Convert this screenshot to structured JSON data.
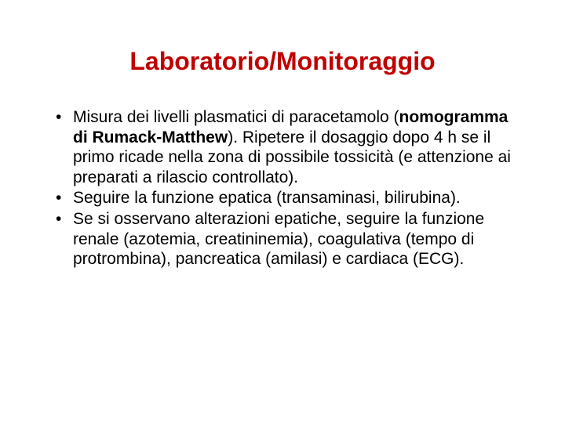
{
  "title_text": "Laboratorio/Monitoraggio",
  "title_color": "#c00000",
  "body_color": "#000000",
  "background_color": "#ffffff",
  "title_fontsize": 32,
  "body_fontsize": 21,
  "bullets": [
    {
      "pre": "Misura dei livelli plasmatici di paracetamolo (",
      "bold": "nomogramma di Rumack-Matthew",
      "post": "). Ripetere il dosaggio dopo 4 h se il primo ricade nella zona di possibile tossicità (e attenzione ai preparati a rilascio controllato)."
    },
    {
      "pre": "Seguire la funzione epatica (transaminasi, bilirubina).",
      "bold": "",
      "post": ""
    },
    {
      "pre": "Se si osservano alterazioni epatiche, seguire la funzione renale (azotemia, creatininemia), coagulativa (tempo di protrombina), pancreatica (amilasi) e cardiaca (ECG).",
      "bold": "",
      "post": ""
    }
  ]
}
